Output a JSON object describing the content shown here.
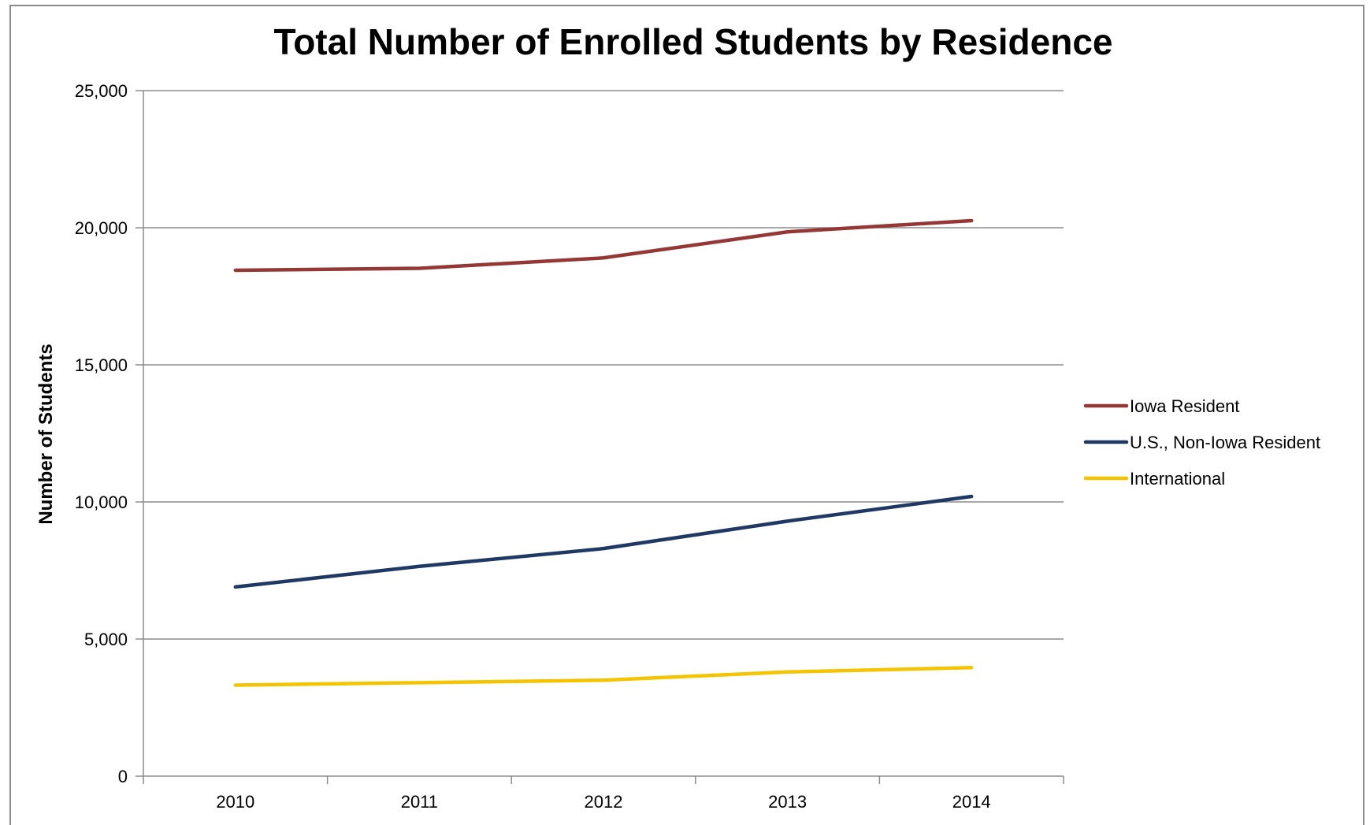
{
  "chart_data": {
    "type": "line",
    "title": "Total Number of Enrolled Students by Residence",
    "xlabel": "",
    "ylabel": "Number of Students",
    "categories": [
      "2010",
      "2011",
      "2012",
      "2013",
      "2014"
    ],
    "ylim": [
      0,
      25000
    ],
    "yticks": [
      0,
      5000,
      10000,
      15000,
      20000,
      25000
    ],
    "ytick_labels": [
      "0",
      "5,000",
      "10,000",
      "15,000",
      "20,000",
      "25,000"
    ],
    "grid": true,
    "legend_position": "right",
    "series": [
      {
        "name": "Iowa Resident",
        "color": "#953735",
        "values": [
          18450,
          18520,
          18900,
          19850,
          20260
        ]
      },
      {
        "name": "U.S., Non-Iowa Resident",
        "color": "#1f3864",
        "values": [
          6900,
          7650,
          8300,
          9300,
          10200
        ]
      },
      {
        "name": "International",
        "color": "#f5c400",
        "values": [
          3320,
          3410,
          3500,
          3800,
          3960
        ]
      }
    ]
  }
}
